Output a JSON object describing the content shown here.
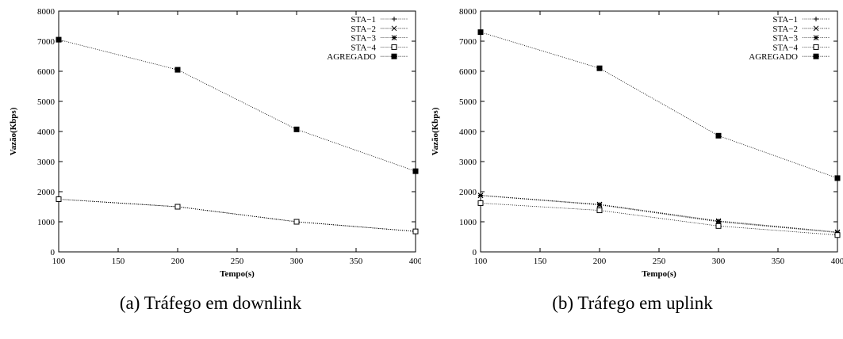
{
  "chart_data": [
    {
      "type": "line",
      "caption": "(a) Tráfego em downlink",
      "xlabel": "Tempo(s)",
      "ylabel": "Vazão(Kbps)",
      "xlim": [
        100,
        400
      ],
      "ylim": [
        0,
        8000
      ],
      "xticks": [
        "100",
        "150",
        "200",
        "250",
        "300",
        "350",
        "400"
      ],
      "yticks": [
        "0",
        "1000",
        "2000",
        "3000",
        "4000",
        "5000",
        "6000",
        "7000",
        "8000"
      ],
      "x": [
        100,
        200,
        300,
        400
      ],
      "legend_position": "top-right",
      "grid": false,
      "series": [
        {
          "name": "STA−1",
          "marker": "plus",
          "values": [
            1750,
            1500,
            1000,
            680
          ]
        },
        {
          "name": "STA−2",
          "marker": "cross",
          "values": [
            1750,
            1500,
            1000,
            680
          ]
        },
        {
          "name": "STA−3",
          "marker": "star",
          "values": [
            1750,
            1500,
            1000,
            680
          ]
        },
        {
          "name": "STA−4",
          "marker": "open-square",
          "values": [
            1750,
            1500,
            1000,
            680
          ]
        },
        {
          "name": "AGREGADO",
          "marker": "filled-square",
          "values": [
            7050,
            6050,
            4070,
            2680
          ]
        }
      ]
    },
    {
      "type": "line",
      "caption": "(b) Tráfego em uplink",
      "xlabel": "Tempo(s)",
      "ylabel": "Vazão(Kbps)",
      "xlim": [
        100,
        400
      ],
      "ylim": [
        0,
        8000
      ],
      "xticks": [
        "100",
        "150",
        "200",
        "250",
        "300",
        "350",
        "400"
      ],
      "yticks": [
        "0",
        "1000",
        "2000",
        "3000",
        "4000",
        "5000",
        "6000",
        "7000",
        "8000"
      ],
      "x": [
        100,
        200,
        300,
        400
      ],
      "legend_position": "top-right",
      "grid": false,
      "series": [
        {
          "name": "STA−1",
          "marker": "plus",
          "values": [
            1880,
            1570,
            1020,
            650
          ]
        },
        {
          "name": "STA−2",
          "marker": "cross",
          "values": [
            1880,
            1580,
            1030,
            660
          ]
        },
        {
          "name": "STA−3",
          "marker": "star",
          "values": [
            1870,
            1560,
            1000,
            640
          ]
        },
        {
          "name": "STA−4",
          "marker": "open-square",
          "values": [
            1620,
            1380,
            860,
            560
          ]
        },
        {
          "name": "AGREGADO",
          "marker": "filled-square",
          "values": [
            7300,
            6100,
            3860,
            2450
          ]
        }
      ]
    }
  ]
}
